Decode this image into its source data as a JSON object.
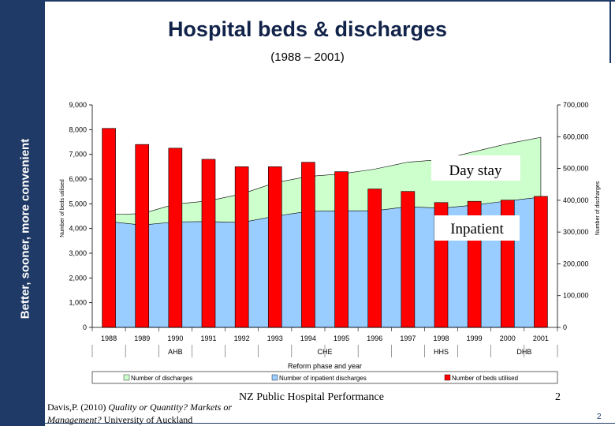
{
  "sidebar": {
    "text": "Better, sooner, more convenient"
  },
  "header": {
    "title": "Hospital beds & discharges",
    "subtitle": "(1988 – 2001)"
  },
  "footer": {
    "center": "NZ Public Hospital Performance",
    "number": "2",
    "page": "2",
    "citation_author": "Davis,P. (2010) ",
    "citation_title": "Quality or Quantity? Markets or",
    "citation_title2": "Management?",
    "citation_publisher": " University of Auckland"
  },
  "chart_data": {
    "type": "bar",
    "categories": [
      "1988",
      "1989",
      "1990",
      "1991",
      "1992",
      "1993",
      "1994",
      "1995",
      "1996",
      "1997",
      "1998",
      "1999",
      "2000",
      "2001"
    ],
    "phases": [
      {
        "label": "AHB",
        "from": 0,
        "to": 4
      },
      {
        "label": "CHE",
        "from": 5,
        "to": 8
      },
      {
        "label": "HHS",
        "from": 9,
        "to": 11
      },
      {
        "label": "DHB",
        "from": 12,
        "to": 13
      }
    ],
    "xlabel": "Reform phase and year",
    "ylabel_left": "Number of beds utilised",
    "ylabel_right": "Number of discharges",
    "ylim_left": [
      0,
      9000
    ],
    "ylim_right": [
      0,
      700000
    ],
    "yticks_left": [
      "0",
      "1,000",
      "2,000",
      "3,000",
      "4,000",
      "5,000",
      "6,000",
      "7,000",
      "8,000",
      "9,000"
    ],
    "yticks_right": [
      "0",
      "100,000",
      "200,000",
      "300,000",
      "400,000",
      "500,000",
      "600,000",
      "700,000"
    ],
    "series": [
      {
        "name": "Number of discharges",
        "type": "area",
        "axis": "right",
        "color": "#ccffcc",
        "values": [
          355000,
          358000,
          388000,
          398000,
          420000,
          455000,
          475000,
          483000,
          498000,
          520000,
          528000,
          553000,
          578000,
          598000
        ]
      },
      {
        "name": "Number of inpatient discharges",
        "type": "area",
        "axis": "right",
        "color": "#99ccff",
        "values": [
          333000,
          322000,
          332000,
          333000,
          330000,
          350000,
          365000,
          367000,
          367000,
          380000,
          375000,
          385000,
          398000,
          410000
        ]
      },
      {
        "name": "Number of beds utilised",
        "type": "bar",
        "axis": "left",
        "color": "#ff0000",
        "values": [
          8050,
          7400,
          7250,
          6800,
          6500,
          6500,
          6680,
          6300,
          5600,
          5500,
          5050,
          5100,
          5150,
          5300
        ]
      }
    ],
    "annotations": [
      "Day stay",
      "Inpatient"
    ]
  }
}
